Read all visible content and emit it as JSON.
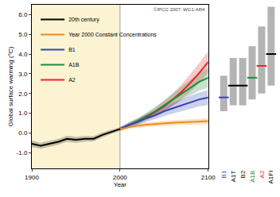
{
  "chart_data": {
    "type": "line",
    "x_label": "Year",
    "y_label": "Global surface warming (°C)",
    "annotation": "©IPCC 2007: WG1-AR4",
    "xlim": [
      1900,
      2100
    ],
    "xticks": [
      1900,
      2000,
      2100
    ],
    "ylim": [
      -1.8,
      6.5
    ],
    "yticks": [
      {
        "value": -1,
        "label": "-1.0"
      },
      {
        "value": 0,
        "label": "0.0"
      },
      {
        "value": 1,
        "label": "1.0"
      },
      {
        "value": 2,
        "label": "2.0"
      },
      {
        "value": 3,
        "label": "3.0"
      },
      {
        "value": 4,
        "label": "4.0"
      },
      {
        "value": 5,
        "label": "5.0"
      },
      {
        "value": 6,
        "label": "6.0"
      }
    ],
    "divider": 2000,
    "grid": false,
    "legend": "upper left",
    "series": [
      {
        "name": "A2",
        "color": "#e8262a",
        "x": [
          2000,
          2010,
          2020,
          2030,
          2040,
          2050,
          2060,
          2070,
          2080,
          2090,
          2100
        ],
        "values": [
          0.2,
          0.4,
          0.6,
          0.8,
          1.05,
          1.35,
          1.7,
          2.1,
          2.55,
          3.05,
          3.6
        ],
        "lower": [
          0.1,
          0.28,
          0.45,
          0.62,
          0.82,
          1.08,
          1.38,
          1.72,
          2.1,
          2.55,
          3.05
        ],
        "upper": [
          0.3,
          0.52,
          0.75,
          0.98,
          1.28,
          1.62,
          2.02,
          2.48,
          3.0,
          3.55,
          4.15
        ]
      },
      {
        "name": "A1B",
        "color": "#1e8a3c",
        "x": [
          2000,
          2010,
          2020,
          2030,
          2040,
          2050,
          2060,
          2070,
          2080,
          2090,
          2100
        ],
        "values": [
          0.2,
          0.4,
          0.6,
          0.85,
          1.1,
          1.4,
          1.7,
          2.0,
          2.3,
          2.6,
          2.8
        ],
        "lower": [
          0.1,
          0.28,
          0.45,
          0.67,
          0.88,
          1.14,
          1.4,
          1.65,
          1.9,
          2.15,
          2.3
        ],
        "upper": [
          0.3,
          0.52,
          0.75,
          1.03,
          1.32,
          1.66,
          2.0,
          2.35,
          2.7,
          3.05,
          3.3
        ]
      },
      {
        "name": "B1",
        "color": "#3344b0",
        "x": [
          2000,
          2010,
          2020,
          2030,
          2040,
          2050,
          2060,
          2070,
          2080,
          2090,
          2100
        ],
        "values": [
          0.2,
          0.4,
          0.55,
          0.75,
          0.9,
          1.1,
          1.25,
          1.4,
          1.55,
          1.7,
          1.8
        ],
        "lower": [
          0.1,
          0.28,
          0.4,
          0.57,
          0.7,
          0.86,
          0.98,
          1.1,
          1.22,
          1.35,
          1.42
        ],
        "upper": [
          0.3,
          0.52,
          0.7,
          0.93,
          1.1,
          1.34,
          1.52,
          1.7,
          1.88,
          2.05,
          2.18
        ]
      },
      {
        "name": "Year 2000 Constant Concentrations",
        "color": "#f08a1c",
        "x": [
          2000,
          2010,
          2020,
          2030,
          2040,
          2050,
          2060,
          2070,
          2080,
          2090,
          2100
        ],
        "values": [
          0.2,
          0.3,
          0.37,
          0.42,
          0.46,
          0.5,
          0.52,
          0.54,
          0.56,
          0.58,
          0.6
        ],
        "lower": [
          0.1,
          0.2,
          0.26,
          0.3,
          0.34,
          0.37,
          0.39,
          0.41,
          0.42,
          0.44,
          0.45
        ],
        "upper": [
          0.3,
          0.4,
          0.48,
          0.54,
          0.58,
          0.63,
          0.65,
          0.67,
          0.7,
          0.72,
          0.75
        ]
      },
      {
        "name": "20th century",
        "color": "#000000",
        "x": [
          1900,
          1910,
          1920,
          1930,
          1940,
          1950,
          1960,
          1970,
          1980,
          1990,
          2000
        ],
        "values": [
          -0.55,
          -0.65,
          -0.55,
          -0.45,
          -0.3,
          -0.35,
          -0.3,
          -0.3,
          -0.1,
          0.05,
          0.2
        ],
        "lower": [
          -0.72,
          -0.8,
          -0.7,
          -0.6,
          -0.45,
          -0.5,
          -0.44,
          -0.43,
          -0.22,
          -0.07,
          0.1
        ],
        "upper": [
          -0.38,
          -0.5,
          -0.4,
          -0.3,
          -0.15,
          -0.2,
          -0.16,
          -0.17,
          0.02,
          0.17,
          0.3
        ]
      }
    ],
    "ranges": {
      "categories": [
        "B1",
        "A1T",
        "B2",
        "A1B",
        "A2",
        "A1FI"
      ],
      "best": [
        1.8,
        2.4,
        2.4,
        2.8,
        3.4,
        4.0
      ],
      "low": [
        1.1,
        1.4,
        1.4,
        1.7,
        2.0,
        2.4
      ],
      "high": [
        2.9,
        3.8,
        3.8,
        4.4,
        5.4,
        6.4
      ],
      "colors": [
        "#3344b0",
        "#000000",
        "#000000",
        "#1e8a3c",
        "#e8262a",
        "#000000"
      ]
    }
  }
}
